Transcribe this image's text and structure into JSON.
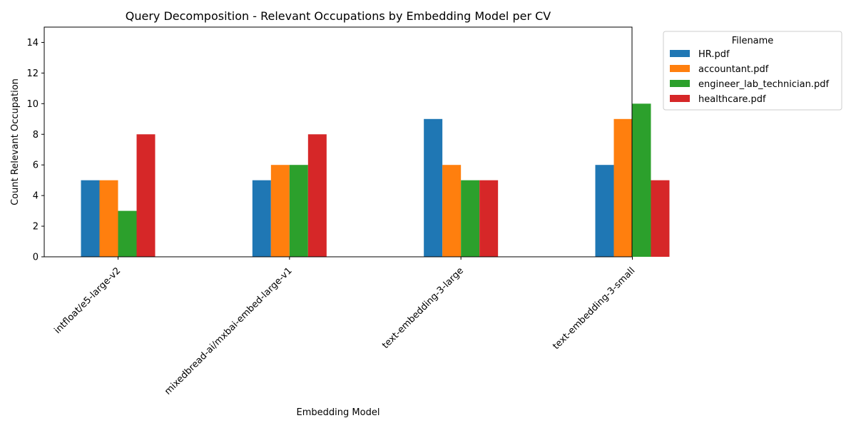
{
  "chart_data": {
    "type": "bar",
    "title": "Query Decomposition - Relevant Occupations by Embedding Model per CV",
    "xlabel": "Embedding Model",
    "ylabel": "Count Relevant Occupation",
    "ylim": [
      0,
      15
    ],
    "yticks": [
      0,
      2,
      4,
      6,
      8,
      10,
      12,
      14
    ],
    "grid": false,
    "legend_title": "Filename",
    "legend_position": "outside-upper-right",
    "categories": [
      "intfloat/e5-large-v2",
      "mixedbread-ai/mxbai-embed-large-v1",
      "text-embedding-3-large",
      "text-embedding-3-small"
    ],
    "series": [
      {
        "name": "HR.pdf",
        "color": "#1f77b4",
        "values": [
          5,
          5,
          9,
          6
        ]
      },
      {
        "name": "accountant.pdf",
        "color": "#ff7f0e",
        "values": [
          5,
          6,
          6,
          9
        ]
      },
      {
        "name": "engineer_lab_technician.pdf",
        "color": "#2ca02c",
        "values": [
          3,
          6,
          5,
          10
        ]
      },
      {
        "name": "healthcare.pdf",
        "color": "#d62728",
        "values": [
          8,
          8,
          5,
          5
        ]
      }
    ]
  }
}
